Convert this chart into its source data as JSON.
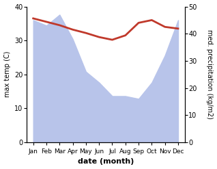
{
  "months": [
    "Jan",
    "Feb",
    "Mar",
    "Apr",
    "May",
    "Jun",
    "Jul",
    "Aug",
    "Sep",
    "Oct",
    "Nov",
    "Dec"
  ],
  "x": [
    0,
    1,
    2,
    3,
    4,
    5,
    6,
    7,
    8,
    9,
    10,
    11
  ],
  "temp": [
    36.5,
    35.5,
    34.5,
    33.2,
    32.2,
    31.0,
    30.2,
    31.5,
    35.2,
    36.0,
    34.0,
    33.5
  ],
  "precip": [
    45,
    43,
    47,
    38,
    26,
    22,
    17,
    17,
    16,
    22,
    32,
    45
  ],
  "temp_color": "#c0392b",
  "precip_color": "#b8c4ea",
  "left_ylim": [
    0,
    40
  ],
  "right_ylim": [
    0,
    50
  ],
  "left_yticks": [
    0,
    10,
    20,
    30,
    40
  ],
  "right_yticks": [
    0,
    10,
    20,
    30,
    40,
    50
  ],
  "xlabel": "date (month)",
  "ylabel_left": "max temp (C)",
  "ylabel_right": "med. precipitation (kg/m2)",
  "bg_color": "#ffffff",
  "figsize": [
    3.18,
    2.47
  ],
  "dpi": 100
}
